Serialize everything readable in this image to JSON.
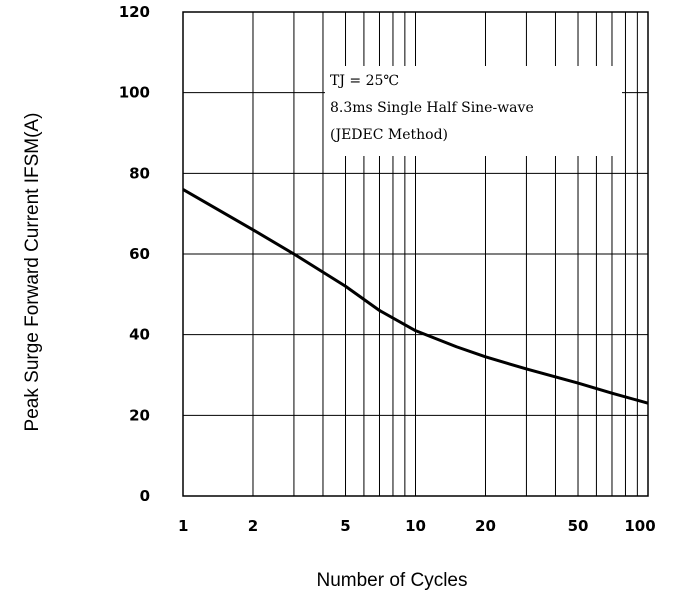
{
  "chart_data": {
    "type": "line",
    "title": "",
    "xlabel": "Number of Cycles",
    "ylabel": "Peak Surge Forward Current IFSM(A)",
    "x_scale": "log",
    "xlim": [
      1,
      100
    ],
    "ylim": [
      0,
      120
    ],
    "x_ticks": [
      1,
      2,
      5,
      10,
      20,
      50,
      100
    ],
    "x_tick_labels": [
      "1",
      "2",
      "5",
      "10",
      "20",
      "50",
      "100"
    ],
    "y_ticks": [
      0,
      20,
      40,
      60,
      80,
      100,
      120
    ],
    "y_tick_labels": [
      "0",
      "20",
      "40",
      "60",
      "80",
      "100",
      "120"
    ],
    "grid": true,
    "annotation_lines": [
      "TJ = 25℃",
      "8.3ms Single Half Sine-wave",
      "(JEDEC Method)"
    ],
    "series": [
      {
        "name": "",
        "x": [
          1,
          2,
          3,
          5,
          7,
          10,
          15,
          20,
          30,
          50,
          70,
          100
        ],
        "y": [
          76,
          66,
          60,
          52,
          46,
          41,
          37,
          34.5,
          31.5,
          28,
          25.5,
          23
        ]
      }
    ]
  }
}
